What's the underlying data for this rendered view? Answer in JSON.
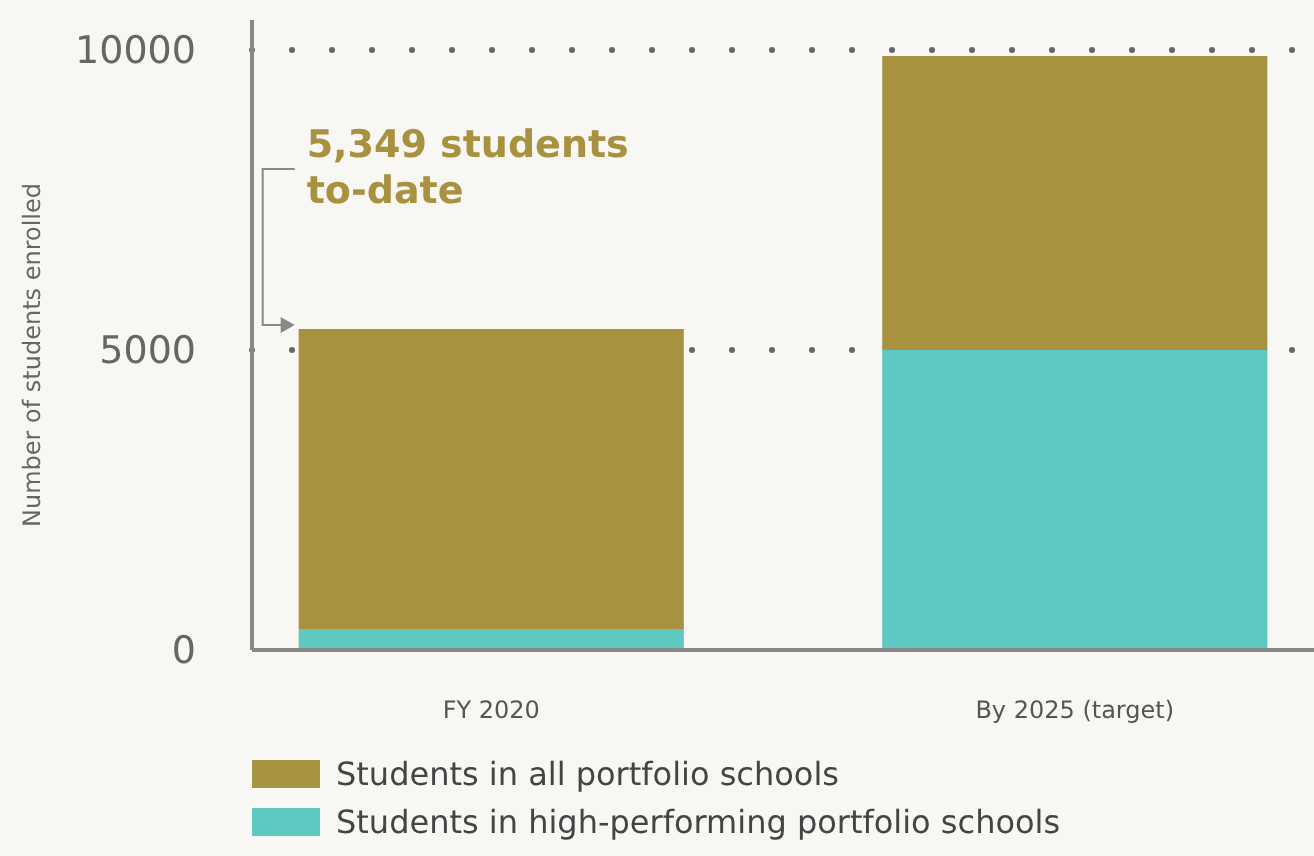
{
  "chart_data": {
    "type": "bar",
    "stacked": true,
    "ylabel": "Number of students enrolled",
    "categories": [
      "FY 2020",
      "By 2025 (target)"
    ],
    "series": [
      {
        "name": "Students in high-performing portfolio schools",
        "color": "#5ec8c3",
        "values": [
          350,
          5000
        ]
      },
      {
        "name": "Students in all portfolio schools",
        "color": "#a8913f",
        "values": [
          5000,
          4900
        ]
      }
    ],
    "ylim": [
      0,
      10500
    ],
    "yticks": [
      0,
      5000,
      10000
    ],
    "grid": "y",
    "legend": "bottom",
    "annotations": [
      "5,349 students to-date"
    ]
  }
}
